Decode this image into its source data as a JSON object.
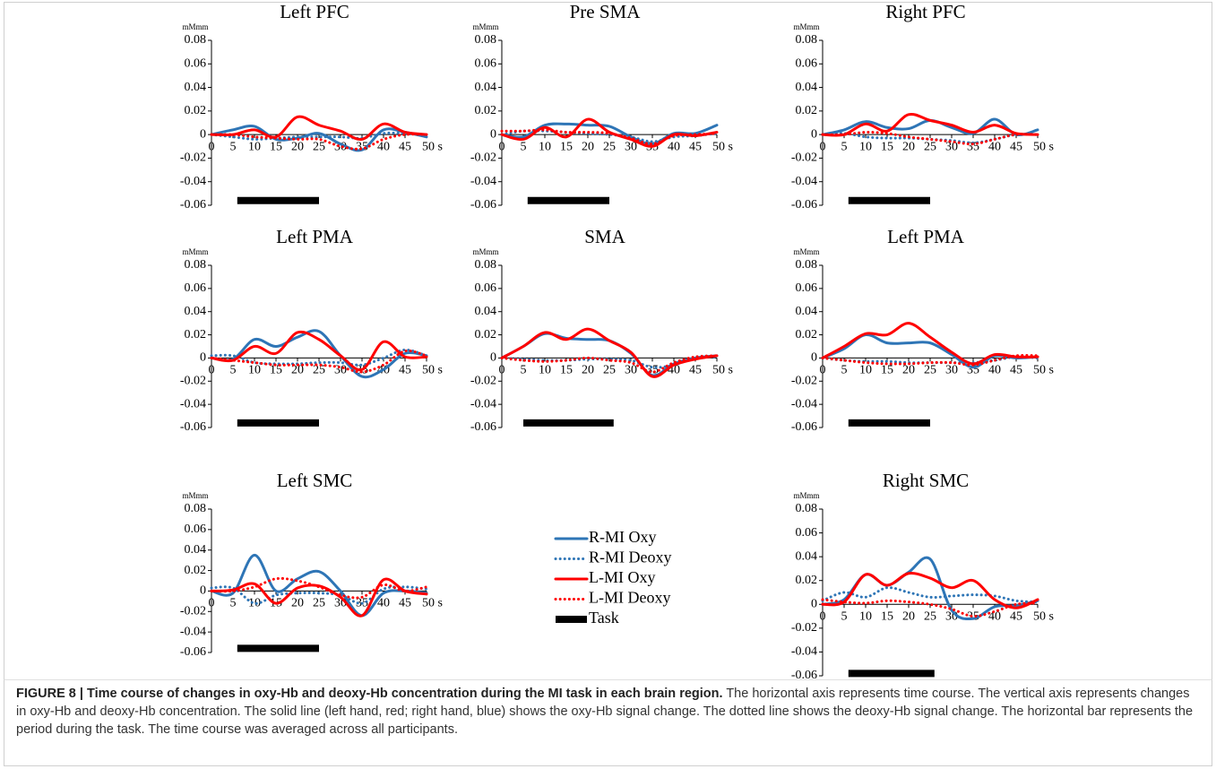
{
  "chart_data": [
    {
      "type": "line",
      "title": "Left PFC",
      "y_unit": "mMmm",
      "x": [
        0,
        5,
        10,
        15,
        20,
        25,
        30,
        35,
        40,
        45,
        50
      ],
      "xlim": [
        0,
        50
      ],
      "ylim": [
        -0.06,
        0.08
      ],
      "xticks": [
        0,
        5,
        10,
        15,
        20,
        25,
        30,
        35,
        40,
        45,
        {
          "value": 50,
          "label": "50 s"
        }
      ],
      "yticks": [
        0.08,
        0.06,
        0.04,
        0.02,
        0,
        -0.02,
        -0.04,
        -0.06
      ],
      "task": {
        "start": 6,
        "end": 25,
        "level": -0.056
      },
      "series": [
        {
          "color": "#2e75b6",
          "style": "solid",
          "values": [
            0,
            0.004,
            0.007,
            -0.004,
            -0.003,
            0.001,
            -0.008,
            -0.013,
            0.004,
            0.002,
            -0.002
          ]
        },
        {
          "color": "#2e75b6",
          "style": "dotted",
          "values": [
            0,
            -0.002,
            -0.004,
            -0.003,
            -0.002,
            -0.002,
            -0.002,
            -0.003,
            0.001,
            0.001,
            0
          ]
        },
        {
          "color": "#ff0000",
          "style": "solid",
          "values": [
            0,
            0,
            0.004,
            -0.002,
            0.015,
            0.008,
            0.003,
            -0.004,
            0.009,
            0.002,
            0
          ]
        },
        {
          "color": "#ff0000",
          "style": "dotted",
          "values": [
            0,
            0,
            -0.002,
            -0.003,
            -0.004,
            -0.004,
            -0.01,
            -0.012,
            -0.004,
            0,
            0
          ]
        }
      ]
    },
    {
      "type": "line",
      "title": "Pre SMA",
      "y_unit": "mMmm",
      "x": [
        0,
        5,
        10,
        15,
        20,
        25,
        30,
        35,
        40,
        45,
        50
      ],
      "xlim": [
        0,
        50
      ],
      "ylim": [
        -0.06,
        0.08
      ],
      "xticks": [
        0,
        5,
        10,
        15,
        20,
        25,
        30,
        35,
        40,
        45,
        {
          "value": 50,
          "label": "50 s"
        }
      ],
      "yticks": [
        0.08,
        0.06,
        0.04,
        0.02,
        0,
        -0.02,
        -0.04,
        -0.06
      ],
      "task": {
        "start": 6,
        "end": 25,
        "level": -0.056
      },
      "series": [
        {
          "color": "#2e75b6",
          "style": "solid",
          "values": [
            0,
            -0.002,
            0.008,
            0.009,
            0.008,
            0.007,
            -0.002,
            -0.008,
            0.001,
            0.001,
            0.008
          ]
        },
        {
          "color": "#2e75b6",
          "style": "dotted",
          "values": [
            0,
            0.003,
            0.003,
            0.002,
            0.001,
            0,
            -0.002,
            -0.006,
            -0.002,
            -0.001,
            0.001
          ]
        },
        {
          "color": "#ff0000",
          "style": "solid",
          "values": [
            0,
            -0.004,
            0.006,
            -0.002,
            0.013,
            0.002,
            -0.004,
            -0.01,
            0,
            -0.001,
            0.002
          ]
        },
        {
          "color": "#ff0000",
          "style": "dotted",
          "values": [
            0.003,
            0.003,
            0.004,
            0.002,
            0.002,
            0.001,
            -0.003,
            -0.008,
            -0.001,
            0,
            0.001
          ]
        }
      ]
    },
    {
      "type": "line",
      "title": "Right PFC",
      "y_unit": "mMmm",
      "x": [
        0,
        5,
        10,
        15,
        20,
        25,
        30,
        35,
        40,
        45,
        50
      ],
      "xlim": [
        0,
        50
      ],
      "ylim": [
        -0.06,
        0.08
      ],
      "xticks": [
        0,
        5,
        10,
        15,
        20,
        25,
        30,
        35,
        40,
        45,
        {
          "value": 50,
          "label": "50 s"
        }
      ],
      "yticks": [
        0.08,
        0.06,
        0.04,
        0.02,
        0,
        -0.02,
        -0.04,
        -0.06
      ],
      "task": {
        "start": 6,
        "end": 25,
        "level": -0.056
      },
      "series": [
        {
          "color": "#2e75b6",
          "style": "solid",
          "values": [
            0,
            0.004,
            0.011,
            0.006,
            0.005,
            0.012,
            0.006,
            0.001,
            0.013,
            0,
            0.004
          ]
        },
        {
          "color": "#2e75b6",
          "style": "dotted",
          "values": [
            0,
            0.001,
            -0.002,
            -0.003,
            -0.003,
            -0.004,
            -0.005,
            -0.007,
            -0.004,
            0,
            0
          ]
        },
        {
          "color": "#ff0000",
          "style": "solid",
          "values": [
            0,
            0,
            0.009,
            0.003,
            0.017,
            0.012,
            0.008,
            0.002,
            0.008,
            0.001,
            0
          ]
        },
        {
          "color": "#ff0000",
          "style": "dotted",
          "values": [
            0,
            0,
            0.002,
            0.001,
            -0.002,
            -0.004,
            -0.006,
            -0.008,
            -0.004,
            0,
            0
          ]
        }
      ]
    },
    {
      "type": "line",
      "title": "Left PMA",
      "y_unit": "mMmm",
      "x": [
        0,
        5,
        10,
        15,
        20,
        25,
        30,
        35,
        40,
        45,
        50
      ],
      "xlim": [
        0,
        50
      ],
      "ylim": [
        -0.06,
        0.08
      ],
      "xticks": [
        0,
        5,
        10,
        15,
        20,
        25,
        30,
        35,
        40,
        45,
        {
          "value": 50,
          "label": "50 s"
        }
      ],
      "yticks": [
        0.08,
        0.06,
        0.04,
        0.02,
        0,
        -0.02,
        -0.04,
        -0.06
      ],
      "task": {
        "start": 6,
        "end": 25,
        "level": -0.056
      },
      "series": [
        {
          "color": "#2e75b6",
          "style": "solid",
          "values": [
            0,
            -0.001,
            0.016,
            0.01,
            0.018,
            0.023,
            0.002,
            -0.016,
            -0.01,
            0.004,
            0.002
          ]
        },
        {
          "color": "#2e75b6",
          "style": "dotted",
          "values": [
            0.002,
            0.002,
            -0.004,
            -0.005,
            -0.005,
            -0.004,
            -0.004,
            -0.006,
            0,
            0.007,
            0.002
          ]
        },
        {
          "color": "#ff0000",
          "style": "solid",
          "values": [
            0,
            -0.002,
            0.01,
            0.004,
            0.022,
            0.016,
            0.002,
            -0.01,
            0.014,
            0.001,
            0.001
          ]
        },
        {
          "color": "#ff0000",
          "style": "dotted",
          "values": [
            0,
            -0.002,
            -0.004,
            -0.006,
            -0.006,
            -0.006,
            -0.008,
            -0.012,
            -0.006,
            0.006,
            0.002
          ]
        }
      ]
    },
    {
      "type": "line",
      "title": "SMA",
      "y_unit": "mMmm",
      "x": [
        0,
        5,
        10,
        15,
        20,
        25,
        30,
        35,
        40,
        45,
        50
      ],
      "xlim": [
        0,
        50
      ],
      "ylim": [
        -0.06,
        0.08
      ],
      "xticks": [
        0,
        5,
        10,
        15,
        20,
        25,
        30,
        35,
        40,
        45,
        {
          "value": 50,
          "label": "50 s"
        }
      ],
      "yticks": [
        0.08,
        0.06,
        0.04,
        0.02,
        0,
        -0.02,
        -0.04,
        -0.06
      ],
      "task": {
        "start": 5,
        "end": 26,
        "level": -0.056
      },
      "series": [
        {
          "color": "#2e75b6",
          "style": "solid",
          "values": [
            0,
            0.01,
            0.021,
            0.017,
            0.016,
            0.015,
            0.004,
            -0.015,
            -0.005,
            0,
            0.002
          ]
        },
        {
          "color": "#2e75b6",
          "style": "dotted",
          "values": [
            0,
            -0.001,
            -0.002,
            -0.002,
            -0.001,
            -0.001,
            -0.002,
            -0.008,
            -0.006,
            0,
            0.001
          ]
        },
        {
          "color": "#ff0000",
          "style": "solid",
          "values": [
            0,
            0.01,
            0.022,
            0.016,
            0.025,
            0.015,
            0.005,
            -0.016,
            -0.006,
            -0.001,
            0.002
          ]
        },
        {
          "color": "#ff0000",
          "style": "dotted",
          "values": [
            0,
            -0.002,
            -0.003,
            -0.002,
            0,
            -0.002,
            -0.004,
            -0.012,
            -0.004,
            0.001,
            0.002
          ]
        }
      ]
    },
    {
      "type": "line",
      "title": "Left PMA",
      "y_unit": "mMmm",
      "x": [
        0,
        5,
        10,
        15,
        20,
        25,
        30,
        35,
        40,
        45,
        50
      ],
      "xlim": [
        0,
        50
      ],
      "ylim": [
        -0.06,
        0.08
      ],
      "xticks": [
        0,
        5,
        10,
        15,
        20,
        25,
        30,
        35,
        40,
        45,
        {
          "value": 50,
          "label": "50 s"
        }
      ],
      "yticks": [
        0.08,
        0.06,
        0.04,
        0.02,
        0,
        -0.02,
        -0.04,
        -0.06
      ],
      "task": {
        "start": 6,
        "end": 25,
        "level": -0.056
      },
      "series": [
        {
          "color": "#2e75b6",
          "style": "solid",
          "values": [
            0,
            0.008,
            0.02,
            0.013,
            0.013,
            0.013,
            0.003,
            -0.008,
            0.002,
            0,
            0.001
          ]
        },
        {
          "color": "#2e75b6",
          "style": "dotted",
          "values": [
            0,
            -0.002,
            -0.003,
            -0.003,
            -0.004,
            -0.004,
            -0.004,
            -0.004,
            -0.002,
            0.001,
            0
          ]
        },
        {
          "color": "#ff0000",
          "style": "solid",
          "values": [
            0,
            0.01,
            0.021,
            0.02,
            0.03,
            0.018,
            0.005,
            -0.005,
            0.003,
            0.001,
            0.001
          ]
        },
        {
          "color": "#ff0000",
          "style": "dotted",
          "values": [
            0,
            -0.002,
            -0.004,
            -0.005,
            -0.005,
            -0.004,
            -0.004,
            -0.006,
            -0.002,
            0.002,
            0.002
          ]
        }
      ]
    },
    {
      "type": "line",
      "title": "Left SMC",
      "y_unit": "mMmm",
      "x": [
        0,
        5,
        10,
        15,
        20,
        25,
        30,
        35,
        40,
        45,
        50
      ],
      "xlim": [
        0,
        50
      ],
      "ylim": [
        -0.06,
        0.08
      ],
      "xticks": [
        0,
        5,
        10,
        15,
        20,
        25,
        30,
        35,
        40,
        45,
        {
          "value": 50,
          "label": "50 s"
        }
      ],
      "yticks": [
        0.08,
        0.06,
        0.04,
        0.02,
        0,
        -0.02,
        -0.04,
        -0.06
      ],
      "task": {
        "start": 6,
        "end": 25,
        "level": -0.056
      },
      "series": [
        {
          "color": "#2e75b6",
          "style": "solid",
          "values": [
            0,
            -0.002,
            0.035,
            0,
            0.012,
            0.019,
            0,
            -0.024,
            -0.002,
            0,
            -0.002
          ]
        },
        {
          "color": "#2e75b6",
          "style": "dotted",
          "values": [
            0.003,
            0.003,
            -0.012,
            -0.004,
            -0.002,
            -0.002,
            -0.004,
            -0.012,
            0.002,
            0.004,
            0.002
          ]
        },
        {
          "color": "#ff0000",
          "style": "solid",
          "values": [
            0,
            0.001,
            0.007,
            -0.012,
            0.003,
            0.005,
            -0.006,
            -0.024,
            0.011,
            0,
            -0.003
          ]
        },
        {
          "color": "#ff0000",
          "style": "dotted",
          "values": [
            0,
            0,
            0.004,
            0.012,
            0.01,
            0.004,
            -0.004,
            -0.006,
            0.006,
            0,
            0.004
          ]
        }
      ]
    },
    {
      "type": "line",
      "title": "Right SMC",
      "y_unit": "mMmm",
      "x": [
        0,
        5,
        10,
        15,
        20,
        25,
        30,
        35,
        40,
        45,
        50
      ],
      "xlim": [
        0,
        50
      ],
      "ylim": [
        -0.06,
        0.08
      ],
      "xticks": [
        0,
        5,
        10,
        15,
        20,
        25,
        30,
        35,
        40,
        45,
        {
          "value": 50,
          "label": "50 s"
        }
      ],
      "yticks": [
        0.08,
        0.06,
        0.04,
        0.02,
        0,
        -0.02,
        -0.04,
        -0.06
      ],
      "task": {
        "start": 6,
        "end": 26,
        "level": -0.058
      },
      "series": [
        {
          "color": "#2e75b6",
          "style": "solid",
          "values": [
            0,
            0.004,
            0.025,
            0.016,
            0.027,
            0.038,
            -0.005,
            -0.012,
            -0.002,
            -0.001,
            0.003
          ]
        },
        {
          "color": "#2e75b6",
          "style": "dotted",
          "values": [
            0.003,
            0.01,
            0.006,
            0.014,
            0.01,
            0.006,
            0.007,
            0.008,
            0.007,
            0.003,
            0.002
          ]
        },
        {
          "color": "#ff0000",
          "style": "solid",
          "values": [
            0,
            0.002,
            0.025,
            0.016,
            0.026,
            0.022,
            0.014,
            0.02,
            0.004,
            -0.003,
            0.004
          ]
        },
        {
          "color": "#ff0000",
          "style": "dotted",
          "values": [
            0.004,
            0.002,
            0.001,
            0.003,
            0.002,
            0,
            -0.004,
            -0.01,
            -0.006,
            0,
            0.001
          ]
        }
      ]
    }
  ],
  "legend": [
    {
      "name": "R-MI Oxy",
      "color": "#2e75b6",
      "style": "solid"
    },
    {
      "name": "R-MI Deoxy",
      "color": "#2e75b6",
      "style": "dotted"
    },
    {
      "name": "L-MI Oxy",
      "color": "#ff0000",
      "style": "solid"
    },
    {
      "name": "L-MI Deoxy",
      "color": "#ff0000",
      "style": "dotted"
    },
    {
      "name": "Task",
      "color": "#000000",
      "style": "bar"
    }
  ],
  "caption": {
    "label": "FIGURE 8 | Time course of changes in oxy-Hb and deoxy-Hb concentration during the MI task in each brain region.",
    "text": "The horizontal axis represents time course. The vertical axis represents changes in oxy-Hb and deoxy-Hb concentration. The solid line (left hand, red; right hand, blue) shows the oxy-Hb signal change. The dotted line shows the deoxy-Hb signal change. The horizontal bar represents the period during the task. The time course was averaged across all participants."
  }
}
